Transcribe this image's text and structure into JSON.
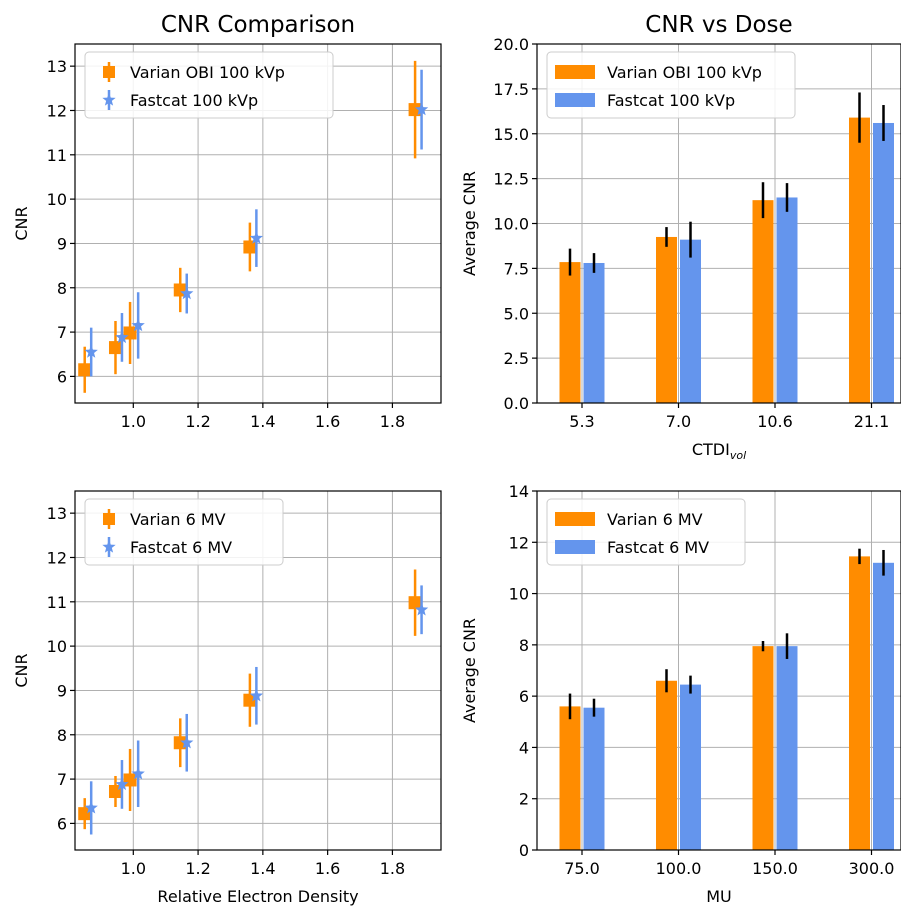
{
  "colors": {
    "orange": "#ff8c00",
    "blue": "#6495ed",
    "errbar": "#000000",
    "grid": "#b0b0b0"
  },
  "chart_data": [
    {
      "id": "cnr_comparison_kv",
      "type": "scatter",
      "title": "CNR Comparison",
      "xlabel": "",
      "ylabel": "CNR",
      "xlim": [
        0.82,
        1.95
      ],
      "ylim": [
        5.4,
        13.5
      ],
      "xticks": [
        "1.0",
        "1.2",
        "1.4",
        "1.6",
        "1.8"
      ],
      "xtick_values": [
        1.0,
        1.2,
        1.4,
        1.6,
        1.8
      ],
      "yticks": [
        "6",
        "7",
        "8",
        "9",
        "10",
        "11",
        "12",
        "13"
      ],
      "ytick_values": [
        6,
        7,
        8,
        9,
        10,
        11,
        12,
        13
      ],
      "grid": true,
      "legend": "top-left",
      "series": [
        {
          "name": "Varian OBI 100 kVp",
          "color": "#ff8c00",
          "marker": "square",
          "x": [
            0.85,
            0.945,
            0.99,
            1.145,
            1.36,
            1.87
          ],
          "y": [
            6.15,
            6.65,
            6.98,
            7.95,
            8.92,
            12.02
          ],
          "err": [
            0.52,
            0.6,
            0.7,
            0.5,
            0.55,
            1.1
          ]
        },
        {
          "name": "Fastcat 100 kVp",
          "color": "#6495ed",
          "marker": "star",
          "x": [
            0.87,
            0.965,
            1.015,
            1.165,
            1.38,
            1.89
          ],
          "y": [
            6.55,
            6.88,
            7.15,
            7.87,
            9.12,
            12.02
          ],
          "err": [
            0.55,
            0.55,
            0.75,
            0.45,
            0.65,
            0.9
          ]
        }
      ]
    },
    {
      "id": "cnr_vs_dose_kv",
      "type": "bar",
      "title": "CNR vs Dose",
      "xlabel": "CTDI",
      "xlabel_sub": "vol",
      "ylabel": "Average CNR",
      "categories": [
        "5.3",
        "7.0",
        "10.6",
        "21.1"
      ],
      "ylim": [
        0,
        20
      ],
      "yticks": [
        "0.0",
        "2.5",
        "5.0",
        "7.5",
        "10.0",
        "12.5",
        "15.0",
        "17.5",
        "20.0"
      ],
      "ytick_values": [
        0,
        2.5,
        5,
        7.5,
        10,
        12.5,
        15,
        17.5,
        20
      ],
      "grid": true,
      "legend": "top-left",
      "series": [
        {
          "name": "Varian OBI 100 kVp",
          "color": "#ff8c00",
          "values": [
            7.85,
            9.25,
            11.3,
            15.9
          ],
          "err": [
            0.75,
            0.55,
            1.0,
            1.4
          ]
        },
        {
          "name": "Fastcat 100 kVp",
          "color": "#6495ed",
          "values": [
            7.8,
            9.1,
            11.45,
            15.6
          ],
          "err": [
            0.55,
            1.0,
            0.8,
            1.0
          ]
        }
      ]
    },
    {
      "id": "cnr_comparison_mv",
      "type": "scatter",
      "title": "",
      "xlabel": "Relative Electron Density",
      "ylabel": "CNR",
      "xlim": [
        0.82,
        1.95
      ],
      "ylim": [
        5.4,
        13.5
      ],
      "xticks": [
        "1.0",
        "1.2",
        "1.4",
        "1.6",
        "1.8"
      ],
      "xtick_values": [
        1.0,
        1.2,
        1.4,
        1.6,
        1.8
      ],
      "yticks": [
        "6",
        "7",
        "8",
        "9",
        "10",
        "11",
        "12",
        "13"
      ],
      "ytick_values": [
        6,
        7,
        8,
        9,
        10,
        11,
        12,
        13
      ],
      "grid": true,
      "legend": "top-left",
      "series": [
        {
          "name": "Varian 6 MV",
          "color": "#ff8c00",
          "marker": "square",
          "x": [
            0.85,
            0.945,
            0.99,
            1.145,
            1.36,
            1.87
          ],
          "y": [
            6.22,
            6.72,
            6.98,
            7.82,
            8.78,
            10.98
          ],
          "err": [
            0.35,
            0.35,
            0.7,
            0.55,
            0.6,
            0.75
          ]
        },
        {
          "name": "Fastcat 6 MV",
          "color": "#6495ed",
          "marker": "star",
          "x": [
            0.87,
            0.965,
            1.015,
            1.165,
            1.38,
            1.89
          ],
          "y": [
            6.35,
            6.88,
            7.12,
            7.82,
            8.88,
            10.82
          ],
          "err": [
            0.6,
            0.55,
            0.75,
            0.65,
            0.65,
            0.55
          ]
        }
      ]
    },
    {
      "id": "cnr_vs_mu",
      "type": "bar",
      "title": "",
      "xlabel": "MU",
      "ylabel": "Average CNR",
      "categories": [
        "75.0",
        "100.0",
        "150.0",
        "300.0"
      ],
      "ylim": [
        0,
        14
      ],
      "yticks": [
        "0",
        "2",
        "4",
        "6",
        "8",
        "10",
        "12",
        "14"
      ],
      "ytick_values": [
        0,
        2,
        4,
        6,
        8,
        10,
        12,
        14
      ],
      "grid": true,
      "legend": "top-left",
      "series": [
        {
          "name": "Varian 6 MV",
          "color": "#ff8c00",
          "values": [
            5.6,
            6.6,
            7.95,
            11.45
          ],
          "err": [
            0.5,
            0.45,
            0.2,
            0.3
          ]
        },
        {
          "name": "Fastcat 6 MV",
          "color": "#6495ed",
          "values": [
            5.55,
            6.45,
            7.95,
            11.2
          ],
          "err": [
            0.35,
            0.35,
            0.5,
            0.5
          ]
        }
      ]
    }
  ]
}
